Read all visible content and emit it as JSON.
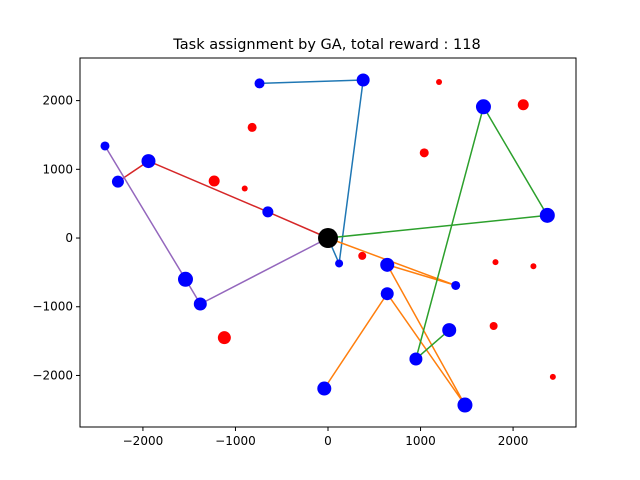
{
  "chart_data": {
    "type": "scatter",
    "title": "Task assignment by GA, total reward : 118",
    "xlabel": "",
    "ylabel": "",
    "xlim": [
      -2680,
      2680
    ],
    "ylim": [
      -2750,
      2620
    ],
    "xticks": [
      -2000,
      -1000,
      0,
      1000,
      2000
    ],
    "yticks": [
      -2000,
      -1000,
      0,
      1000,
      2000
    ],
    "grid": false,
    "depot": {
      "x": 0,
      "y": 0,
      "r": 10,
      "color": "#000000"
    },
    "assigned_color": "#0000ff",
    "unassigned_color": "#ff0000",
    "routes": [
      {
        "color": "#1f77b4",
        "points": [
          [
            0,
            0
          ],
          [
            120,
            -370
          ],
          [
            380,
            2300
          ],
          [
            -740,
            2250
          ]
        ]
      },
      {
        "color": "#ff7f0e",
        "points": [
          [
            0,
            0
          ],
          [
            1380,
            -690
          ],
          [
            640,
            -390
          ],
          [
            1480,
            -2430
          ],
          [
            640,
            -810
          ],
          [
            -40,
            -2190
          ]
        ]
      },
      {
        "color": "#2ca02c",
        "points": [
          [
            0,
            0
          ],
          [
            2370,
            330
          ],
          [
            1680,
            1910
          ],
          [
            950,
            -1760
          ],
          [
            1310,
            -1340
          ]
        ]
      },
      {
        "color": "#d62728",
        "points": [
          [
            0,
            0
          ],
          [
            -650,
            380
          ],
          [
            -1940,
            1120
          ],
          [
            -2270,
            820
          ]
        ]
      },
      {
        "color": "#9467bd",
        "points": [
          [
            0,
            0
          ],
          [
            -1380,
            -960
          ],
          [
            -1540,
            -600
          ],
          [
            -2410,
            1340
          ]
        ]
      }
    ],
    "assigned_tasks": [
      {
        "x": 120,
        "y": -370,
        "r": 4
      },
      {
        "x": 380,
        "y": 2300,
        "r": 6.5
      },
      {
        "x": -740,
        "y": 2250,
        "r": 5
      },
      {
        "x": 1380,
        "y": -690,
        "r": 4.5
      },
      {
        "x": 640,
        "y": -390,
        "r": 7
      },
      {
        "x": 1480,
        "y": -2430,
        "r": 7.5
      },
      {
        "x": 640,
        "y": -810,
        "r": 6.5
      },
      {
        "x": -40,
        "y": -2190,
        "r": 7
      },
      {
        "x": 2370,
        "y": 330,
        "r": 7.5
      },
      {
        "x": 1680,
        "y": 1910,
        "r": 7.5
      },
      {
        "x": 950,
        "y": -1760,
        "r": 6.5
      },
      {
        "x": 1310,
        "y": -1340,
        "r": 7
      },
      {
        "x": -650,
        "y": 380,
        "r": 5.5
      },
      {
        "x": -1940,
        "y": 1120,
        "r": 7
      },
      {
        "x": -2270,
        "y": 820,
        "r": 6
      },
      {
        "x": -1380,
        "y": -960,
        "r": 6.5
      },
      {
        "x": -1540,
        "y": -600,
        "r": 7.5
      },
      {
        "x": -2410,
        "y": 1340,
        "r": 4.5
      }
    ],
    "unassigned_tasks": [
      {
        "x": -820,
        "y": 1610,
        "r": 4.5
      },
      {
        "x": -1230,
        "y": 830,
        "r": 5.5
      },
      {
        "x": -900,
        "y": 720,
        "r": 3
      },
      {
        "x": -1120,
        "y": -1450,
        "r": 6.5
      },
      {
        "x": -650,
        "y": 380,
        "r": 5
      },
      {
        "x": 1200,
        "y": 2270,
        "r": 3
      },
      {
        "x": 2110,
        "y": 1940,
        "r": 5.5
      },
      {
        "x": 1040,
        "y": 1240,
        "r": 4.5
      },
      {
        "x": 1810,
        "y": -350,
        "r": 3
      },
      {
        "x": 2220,
        "y": -410,
        "r": 3
      },
      {
        "x": 1790,
        "y": -1280,
        "r": 4
      },
      {
        "x": 2430,
        "y": -2020,
        "r": 3
      },
      {
        "x": 370,
        "y": -260,
        "r": 4
      }
    ]
  }
}
